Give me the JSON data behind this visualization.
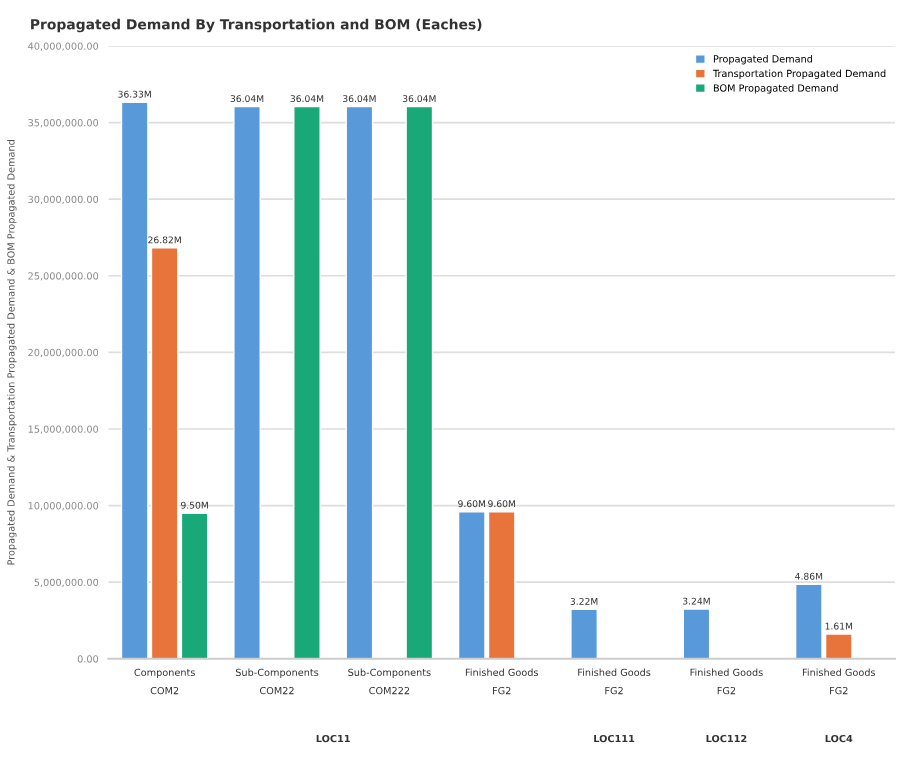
{
  "chart_data": {
    "type": "bar",
    "title": "Propagated Demand By Transportation and BOM (Eaches)",
    "ylabel": "Propagated Demand & Transportation Propagated Demand & BOM Propagated Demand",
    "categories": [
      "Components\nCOM2",
      "Sub-Components\nCOM22",
      "Sub-Components\nCOM222",
      "Finished Goods\nFG2",
      "Finished Goods\nFG2",
      "Finished Goods\nFG2",
      "Finished Goods\nFG2"
    ],
    "series": [
      {
        "name": "Propagated Demand",
        "color": "#5899da",
        "values": [
          36330000,
          36040000,
          36040000,
          9600000,
          3220000,
          3240000,
          4860000
        ],
        "value_labels": [
          "36.33M",
          "36.04M",
          "36.04M",
          "9.60M",
          "3.22M",
          "3.24M",
          "4.86M"
        ]
      },
      {
        "name": "Transportation Propagated Demand",
        "color": "#e8743b",
        "values": [
          26820000,
          null,
          null,
          9600000,
          null,
          null,
          1610000
        ],
        "value_labels": [
          "26.82M",
          null,
          null,
          "9.60M",
          null,
          null,
          "1.61M"
        ]
      },
      {
        "name": "BOM Propagated Demand",
        "color": "#19a979",
        "values": [
          9500000,
          36040000,
          36040000,
          null,
          null,
          null,
          null
        ],
        "value_labels": [
          "9.50M",
          "36.04M",
          "36.04M",
          null,
          null,
          null,
          null
        ]
      }
    ],
    "annotations": [
      "LOC11",
      "LOC111",
      "LOC112",
      "LOC4"
    ],
    "ylim": [
      0,
      40000000
    ],
    "yticks": [
      {
        "value": 0,
        "label": "0.00"
      },
      {
        "value": 5000000,
        "label": "5,000,000.00"
      },
      {
        "value": 10000000,
        "label": "10,000,000.00"
      },
      {
        "value": 15000000,
        "label": "15,000,000.00"
      },
      {
        "value": 20000000,
        "label": "20,000,000.00"
      },
      {
        "value": 25000000,
        "label": "25,000,000.00"
      },
      {
        "value": 30000000,
        "label": "30,000,000.00"
      },
      {
        "value": 35000000,
        "label": "35,000,000.00"
      },
      {
        "value": 40000000,
        "label": "40,000,000.00"
      }
    ],
    "grid": "y",
    "legend": "top right"
  }
}
